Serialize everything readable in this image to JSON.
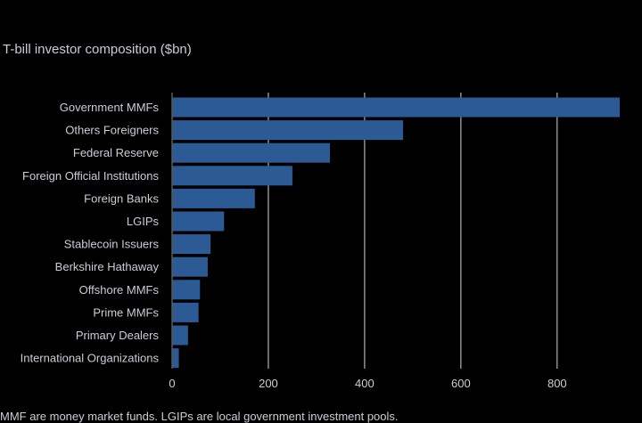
{
  "chart_data": {
    "type": "bar",
    "orientation": "horizontal",
    "title": "T-bill investor composition ($bn)",
    "note": "MMF are money market funds. LGIPs are local government investment pools.",
    "categories": [
      "Government MMFs",
      "Others Foreigners",
      "Federal Reserve",
      "Foreign Official Institutions",
      "Foreign Banks",
      "LGIPs",
      "Stablecoin Issuers",
      "Berkshire Hathaway",
      "Offshore MMFs",
      "Prime MMFs",
      "Primary Dealers",
      "International Organizations"
    ],
    "values": [
      930,
      480,
      328,
      250,
      172,
      108,
      80,
      74,
      58,
      55,
      33,
      14
    ],
    "xlim": [
      0,
      930
    ],
    "xticks": [
      0,
      200,
      400,
      600,
      800
    ],
    "xticklabels": [
      "0",
      "200",
      "400",
      "600",
      "800"
    ],
    "grid": true,
    "colors": {
      "bar": "#2b5a94",
      "grid": "#d4d4d4",
      "axis": "#5a5a5a",
      "text": "#c9ced6",
      "background": "#000000"
    }
  }
}
